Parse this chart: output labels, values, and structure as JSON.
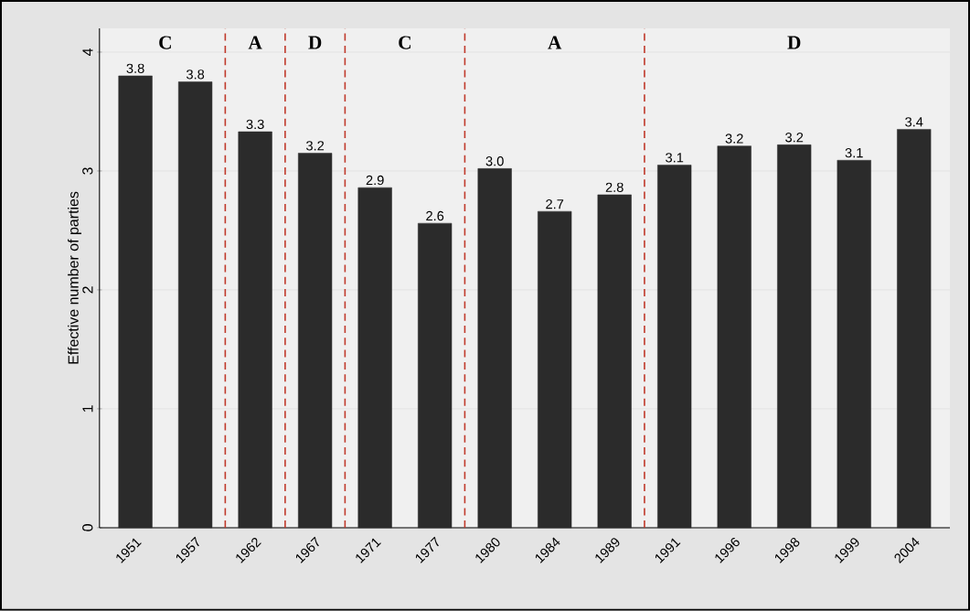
{
  "chart_data": {
    "type": "bar",
    "ylabel": "Effective number of parties",
    "categories": [
      "1951",
      "1957",
      "1962",
      "1967",
      "1971",
      "1977",
      "1980",
      "1984",
      "1989",
      "1991",
      "1996",
      "1998",
      "1999",
      "2004"
    ],
    "values": [
      3.8,
      3.75,
      3.33,
      3.15,
      2.86,
      2.56,
      3.02,
      2.66,
      2.8,
      3.05,
      3.21,
      3.22,
      3.09,
      3.35
    ],
    "value_labels": [
      "3.8",
      "3.8",
      "3.3",
      "3.2",
      "2.9",
      "2.6",
      "3.0",
      "2.7",
      "2.8",
      "3.1",
      "3.2",
      "3.2",
      "3.1",
      "3.4"
    ],
    "color": "#2b2b2b",
    "ylim": [
      0,
      4.2
    ],
    "yticks": [
      0,
      1,
      2,
      3,
      4
    ],
    "grid": "y",
    "annotations": [
      "C",
      "A",
      "D",
      "C",
      "A",
      "D"
    ]
  }
}
